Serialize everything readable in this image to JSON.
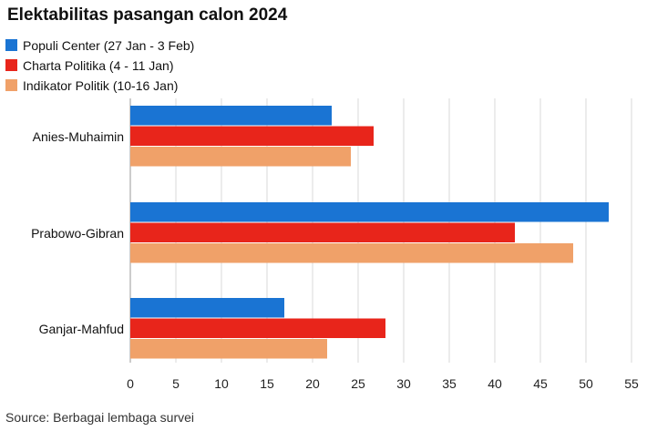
{
  "chart_data": {
    "type": "bar",
    "orientation": "horizontal",
    "title": "Elektabilitas pasangan calon 2024",
    "categories": [
      "Anies-Muhaimin",
      "Prabowo-Gibran",
      "Ganjar-Mahfud"
    ],
    "series": [
      {
        "name": "Populi Center (27 Jan - 3 Feb)",
        "color": "#1a74d3",
        "values": [
          22.1,
          52.5,
          16.9
        ]
      },
      {
        "name": "Charta Politika (4 - 11 Jan)",
        "color": "#e8251b",
        "values": [
          26.7,
          42.2,
          28.0
        ]
      },
      {
        "name": "Indikator Politik (10-16 Jan)",
        "color": "#f0a169",
        "values": [
          24.2,
          48.6,
          21.6
        ]
      }
    ],
    "xlim": [
      0,
      55
    ],
    "xticks": [
      "0",
      "5",
      "10",
      "15",
      "20",
      "25",
      "30",
      "35",
      "40",
      "45",
      "50",
      "55"
    ],
    "grid": true,
    "legend_position": "top-left",
    "source": "Source: Berbagai lembaga survei"
  }
}
